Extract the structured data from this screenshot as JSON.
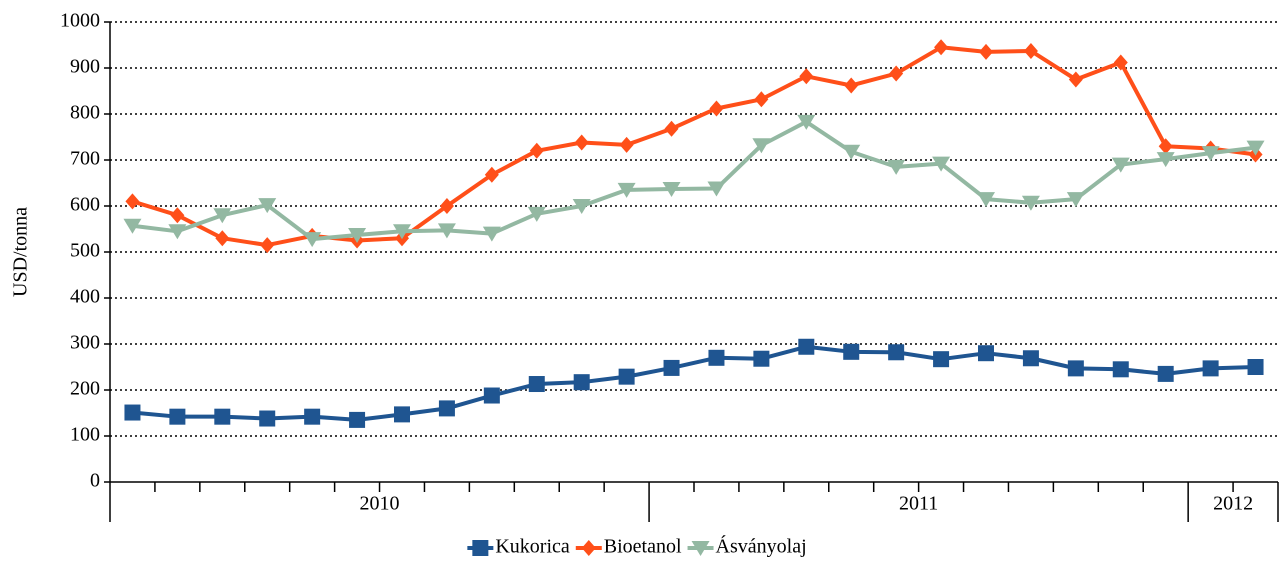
{
  "chart_data": {
    "type": "line",
    "y_label": "USD/tonna",
    "categories": [
      null,
      null,
      null,
      null,
      null,
      null,
      null,
      null,
      null,
      null,
      null,
      null,
      null,
      null,
      null,
      null,
      null,
      null,
      null,
      null,
      null,
      null,
      null,
      null,
      null,
      null
    ],
    "x_groups": [
      {
        "label": "2010",
        "count": 12
      },
      {
        "label": "2011",
        "count": 12
      },
      {
        "label": "2012",
        "count": 2
      }
    ],
    "series": [
      {
        "name": "Kukorica",
        "color": "#1f5591",
        "marker": "square",
        "values": [
          151,
          142,
          142,
          138,
          142,
          135,
          147,
          160,
          188,
          213,
          217,
          229,
          248,
          270,
          268,
          294,
          283,
          282,
          267,
          280,
          269,
          247,
          245,
          235,
          247,
          250
        ]
      },
      {
        "name": "Bioetanol",
        "color": "#ff4f19",
        "marker": "diamond",
        "values": [
          610,
          580,
          530,
          515,
          535,
          525,
          530,
          600,
          668,
          720,
          738,
          733,
          768,
          812,
          832,
          882,
          862,
          888,
          945,
          935,
          937,
          875,
          912,
          730,
          725,
          712
        ]
      },
      {
        "name": "Ásványolaj",
        "color": "#93b8a2",
        "marker": "triangle-down",
        "values": [
          557,
          545,
          580,
          602,
          528,
          537,
          545,
          547,
          540,
          583,
          600,
          635,
          637,
          638,
          732,
          783,
          718,
          685,
          692,
          615,
          607,
          615,
          690,
          702,
          715,
          727
        ]
      }
    ],
    "ylim": [
      0,
      1000
    ],
    "yticks": [
      0,
      100,
      200,
      300,
      400,
      500,
      600,
      700,
      800,
      900,
      1000
    ],
    "grid": true,
    "legend": "bottom"
  }
}
